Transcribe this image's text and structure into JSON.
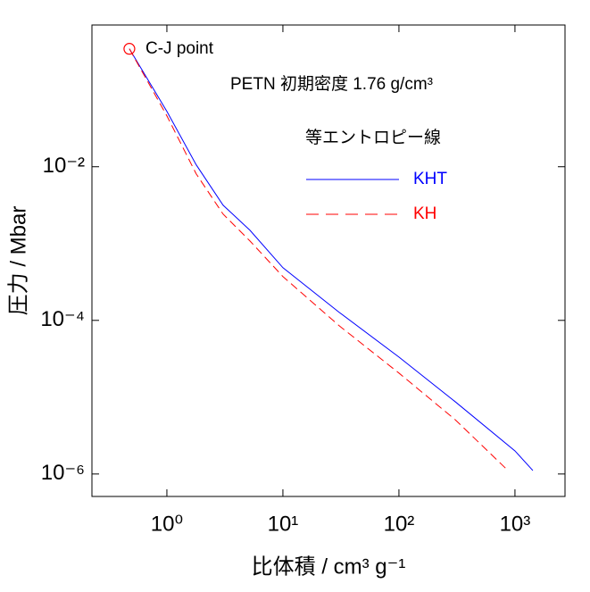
{
  "chart_data": {
    "type": "line",
    "log_x": true,
    "log_y": true,
    "x_label": "比体積 / cm³ g⁻¹",
    "y_label": "圧力 / Mbar",
    "xlim": [
      0.226,
      2700
    ],
    "ylim": [
      5.1e-07,
      0.7
    ],
    "xticks": [
      {
        "value": 1,
        "label": "10⁰"
      },
      {
        "value": 10,
        "label": "10¹"
      },
      {
        "value": 100,
        "label": "10²"
      },
      {
        "value": 1000,
        "label": "10³"
      }
    ],
    "yticks": [
      {
        "value": 1e-06,
        "label": "10⁻⁶"
      },
      {
        "value": 0.0001,
        "label": "10⁻⁴"
      },
      {
        "value": 0.01,
        "label": "10⁻²"
      }
    ],
    "annotations": {
      "cj_point": "C-J point",
      "material": "PETN 初期密度 1.76 g/cm³",
      "legend_title": "等エントロピー線"
    },
    "cj_point": {
      "x": 0.475,
      "y": 0.343,
      "color": "#ff0000"
    },
    "series": [
      {
        "name": "KHT",
        "color": "#0000ff",
        "dash": false,
        "x": [
          0.475,
          1,
          1.79,
          3.05,
          5.2,
          10,
          30.6,
          100,
          305,
          1000,
          1426
        ],
        "values": [
          0.343,
          0.0526,
          0.0106,
          0.00316,
          0.00149,
          0.000485,
          0.000127,
          3.33e-05,
          8.75e-06,
          2e-06,
          1.11e-06
        ]
      },
      {
        "name": "KH",
        "color": "#ff0000",
        "dash": true,
        "x": [
          0.475,
          1,
          1.79,
          3.05,
          5.2,
          10,
          30.6,
          100,
          305,
          840
        ],
        "values": [
          0.343,
          0.046,
          0.00807,
          0.00242,
          0.00108,
          0.000372,
          8.5e-05,
          2.06e-05,
          5.1e-06,
          1.17e-06
        ]
      }
    ]
  }
}
